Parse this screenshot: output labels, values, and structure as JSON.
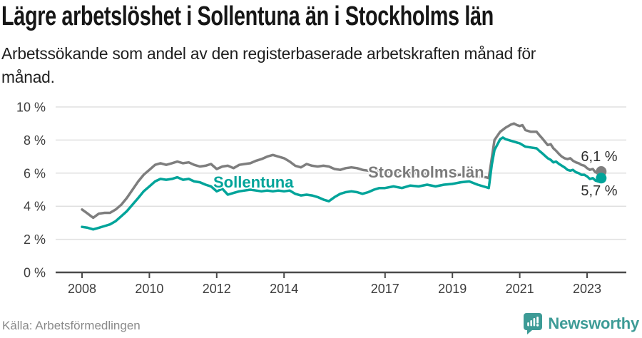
{
  "header": {
    "title": "Lägre arbetslöshet i Sollentuna än i Stockholms län",
    "subtitle_line1": "Arbetssökande som andel av den registerbaserade arbetskraften månad för",
    "subtitle_line2": "månad."
  },
  "chart_data": {
    "type": "line",
    "title": "Lägre arbetslöshet i Sollentuna än i Stockholms län",
    "subtitle": "Arbetssökande som andel av den registerbaserade arbetskraften månad för månad.",
    "xlabel": "",
    "ylabel": "",
    "ylim": [
      0,
      10
    ],
    "grid": true,
    "legend_position": "inline-labels",
    "x_axis": {
      "tick_years": [
        2008,
        2010,
        2012,
        2014,
        2017,
        2019,
        2021,
        2023
      ]
    },
    "y_axis": {
      "ticks": [
        {
          "value": 10,
          "label": "10 %"
        },
        {
          "value": 8,
          "label": "8 %"
        },
        {
          "value": 6,
          "label": "6 %"
        },
        {
          "value": 4,
          "label": "4 %"
        },
        {
          "value": 2,
          "label": "2 %"
        },
        {
          "value": 0,
          "label": "0 %"
        }
      ]
    },
    "series": [
      {
        "name": "Stockholms län",
        "color": "#7e7e7e",
        "end_label": "6,1 %",
        "points": [
          [
            2008.0,
            3.8
          ],
          [
            2008.17,
            3.55
          ],
          [
            2008.33,
            3.3
          ],
          [
            2008.5,
            3.55
          ],
          [
            2008.67,
            3.6
          ],
          [
            2008.83,
            3.6
          ],
          [
            2009.0,
            3.8
          ],
          [
            2009.17,
            4.1
          ],
          [
            2009.33,
            4.5
          ],
          [
            2009.5,
            5.0
          ],
          [
            2009.67,
            5.5
          ],
          [
            2009.83,
            5.9
          ],
          [
            2010.0,
            6.2
          ],
          [
            2010.17,
            6.5
          ],
          [
            2010.33,
            6.6
          ],
          [
            2010.5,
            6.5
          ],
          [
            2010.67,
            6.6
          ],
          [
            2010.83,
            6.7
          ],
          [
            2011.0,
            6.6
          ],
          [
            2011.17,
            6.65
          ],
          [
            2011.33,
            6.5
          ],
          [
            2011.5,
            6.4
          ],
          [
            2011.67,
            6.45
          ],
          [
            2011.83,
            6.55
          ],
          [
            2012.0,
            6.25
          ],
          [
            2012.17,
            6.4
          ],
          [
            2012.33,
            6.45
          ],
          [
            2012.5,
            6.3
          ],
          [
            2012.67,
            6.5
          ],
          [
            2012.83,
            6.55
          ],
          [
            2013.0,
            6.6
          ],
          [
            2013.17,
            6.75
          ],
          [
            2013.33,
            6.85
          ],
          [
            2013.5,
            7.0
          ],
          [
            2013.67,
            7.1
          ],
          [
            2013.83,
            7.0
          ],
          [
            2014.0,
            6.9
          ],
          [
            2014.17,
            6.7
          ],
          [
            2014.33,
            6.45
          ],
          [
            2014.5,
            6.35
          ],
          [
            2014.67,
            6.55
          ],
          [
            2014.83,
            6.45
          ],
          [
            2015.0,
            6.4
          ],
          [
            2015.17,
            6.45
          ],
          [
            2015.33,
            6.4
          ],
          [
            2015.5,
            6.25
          ],
          [
            2015.67,
            6.2
          ],
          [
            2015.83,
            6.3
          ],
          [
            2016.0,
            6.35
          ],
          [
            2016.17,
            6.3
          ],
          [
            2016.33,
            6.2
          ],
          [
            2016.5,
            6.15
          ],
          [
            2016.67,
            6.1
          ],
          [
            2016.83,
            6.1
          ],
          [
            2017.0,
            6.1
          ],
          [
            2017.25,
            6.1
          ],
          [
            2017.5,
            6.05
          ],
          [
            2017.75,
            6.0
          ],
          [
            2018.0,
            6.0
          ],
          [
            2018.25,
            5.95
          ],
          [
            2018.5,
            5.9
          ],
          [
            2018.75,
            5.9
          ],
          [
            2019.0,
            5.85
          ],
          [
            2019.25,
            5.9
          ],
          [
            2019.5,
            5.85
          ],
          [
            2019.75,
            5.8
          ],
          [
            2020.0,
            5.75
          ],
          [
            2020.08,
            5.7
          ],
          [
            2020.17,
            6.9
          ],
          [
            2020.25,
            8.0
          ],
          [
            2020.42,
            8.5
          ],
          [
            2020.58,
            8.75
          ],
          [
            2020.75,
            8.95
          ],
          [
            2020.83,
            9.0
          ],
          [
            2020.92,
            8.9
          ],
          [
            2021.0,
            8.85
          ],
          [
            2021.08,
            8.9
          ],
          [
            2021.17,
            8.6
          ],
          [
            2021.33,
            8.5
          ],
          [
            2021.5,
            8.5
          ],
          [
            2021.58,
            8.3
          ],
          [
            2021.67,
            8.1
          ],
          [
            2021.75,
            7.9
          ],
          [
            2021.83,
            7.7
          ],
          [
            2021.92,
            7.75
          ],
          [
            2022.0,
            7.5
          ],
          [
            2022.08,
            7.35
          ],
          [
            2022.17,
            7.15
          ],
          [
            2022.25,
            7.0
          ],
          [
            2022.33,
            6.9
          ],
          [
            2022.42,
            6.85
          ],
          [
            2022.5,
            6.9
          ],
          [
            2022.58,
            6.75
          ],
          [
            2022.67,
            6.65
          ],
          [
            2022.75,
            6.6
          ],
          [
            2022.83,
            6.5
          ],
          [
            2022.92,
            6.45
          ],
          [
            2023.0,
            6.3
          ],
          [
            2023.08,
            6.2
          ],
          [
            2023.17,
            6.25
          ],
          [
            2023.25,
            6.05
          ],
          [
            2023.33,
            6.0
          ],
          [
            2023.42,
            6.1
          ]
        ]
      },
      {
        "name": "Sollentuna",
        "color": "#00a49a",
        "end_label": "5,7 %",
        "points": [
          [
            2008.0,
            2.75
          ],
          [
            2008.17,
            2.7
          ],
          [
            2008.33,
            2.6
          ],
          [
            2008.5,
            2.7
          ],
          [
            2008.67,
            2.8
          ],
          [
            2008.83,
            2.9
          ],
          [
            2009.0,
            3.1
          ],
          [
            2009.17,
            3.4
          ],
          [
            2009.33,
            3.7
          ],
          [
            2009.5,
            4.1
          ],
          [
            2009.67,
            4.5
          ],
          [
            2009.83,
            4.9
          ],
          [
            2010.0,
            5.2
          ],
          [
            2010.17,
            5.5
          ],
          [
            2010.33,
            5.65
          ],
          [
            2010.5,
            5.6
          ],
          [
            2010.67,
            5.65
          ],
          [
            2010.83,
            5.75
          ],
          [
            2011.0,
            5.6
          ],
          [
            2011.17,
            5.65
          ],
          [
            2011.33,
            5.5
          ],
          [
            2011.5,
            5.45
          ],
          [
            2011.67,
            5.3
          ],
          [
            2011.83,
            5.2
          ],
          [
            2012.0,
            4.9
          ],
          [
            2012.17,
            5.05
          ],
          [
            2012.33,
            4.7
          ],
          [
            2012.5,
            4.8
          ],
          [
            2012.67,
            4.9
          ],
          [
            2012.83,
            4.95
          ],
          [
            2013.0,
            5.0
          ],
          [
            2013.17,
            4.95
          ],
          [
            2013.33,
            4.9
          ],
          [
            2013.5,
            4.95
          ],
          [
            2013.67,
            4.9
          ],
          [
            2013.83,
            4.95
          ],
          [
            2014.0,
            4.9
          ],
          [
            2014.17,
            4.95
          ],
          [
            2014.33,
            4.75
          ],
          [
            2014.5,
            4.65
          ],
          [
            2014.67,
            4.7
          ],
          [
            2014.83,
            4.65
          ],
          [
            2015.0,
            4.55
          ],
          [
            2015.17,
            4.4
          ],
          [
            2015.33,
            4.3
          ],
          [
            2015.5,
            4.55
          ],
          [
            2015.67,
            4.75
          ],
          [
            2015.83,
            4.85
          ],
          [
            2016.0,
            4.9
          ],
          [
            2016.17,
            4.85
          ],
          [
            2016.33,
            4.75
          ],
          [
            2016.5,
            4.85
          ],
          [
            2016.67,
            5.0
          ],
          [
            2016.83,
            5.1
          ],
          [
            2017.0,
            5.1
          ],
          [
            2017.25,
            5.2
          ],
          [
            2017.5,
            5.1
          ],
          [
            2017.75,
            5.25
          ],
          [
            2018.0,
            5.2
          ],
          [
            2018.25,
            5.3
          ],
          [
            2018.5,
            5.2
          ],
          [
            2018.75,
            5.3
          ],
          [
            2019.0,
            5.35
          ],
          [
            2019.25,
            5.45
          ],
          [
            2019.5,
            5.5
          ],
          [
            2019.75,
            5.3
          ],
          [
            2020.0,
            5.15
          ],
          [
            2020.08,
            5.1
          ],
          [
            2020.17,
            6.5
          ],
          [
            2020.25,
            7.4
          ],
          [
            2020.42,
            8.05
          ],
          [
            2020.5,
            8.15
          ],
          [
            2020.58,
            8.05
          ],
          [
            2020.75,
            7.95
          ],
          [
            2020.92,
            7.85
          ],
          [
            2021.0,
            7.8
          ],
          [
            2021.17,
            7.6
          ],
          [
            2021.33,
            7.55
          ],
          [
            2021.5,
            7.5
          ],
          [
            2021.58,
            7.35
          ],
          [
            2021.67,
            7.2
          ],
          [
            2021.75,
            7.05
          ],
          [
            2021.83,
            6.9
          ],
          [
            2021.92,
            6.8
          ],
          [
            2022.0,
            6.65
          ],
          [
            2022.08,
            6.7
          ],
          [
            2022.17,
            6.55
          ],
          [
            2022.25,
            6.45
          ],
          [
            2022.33,
            6.35
          ],
          [
            2022.42,
            6.2
          ],
          [
            2022.5,
            6.15
          ],
          [
            2022.58,
            6.2
          ],
          [
            2022.67,
            6.05
          ],
          [
            2022.75,
            6.0
          ],
          [
            2022.83,
            5.9
          ],
          [
            2022.92,
            5.9
          ],
          [
            2023.0,
            5.8
          ],
          [
            2023.08,
            5.65
          ],
          [
            2023.17,
            5.7
          ],
          [
            2023.25,
            5.55
          ],
          [
            2023.33,
            5.5
          ],
          [
            2023.42,
            5.7
          ]
        ]
      }
    ]
  },
  "footer": {
    "source": "Källa: Arbetsförmedlingen",
    "brand_name": "Newsworthy",
    "brand_color": "#3d9b96"
  }
}
